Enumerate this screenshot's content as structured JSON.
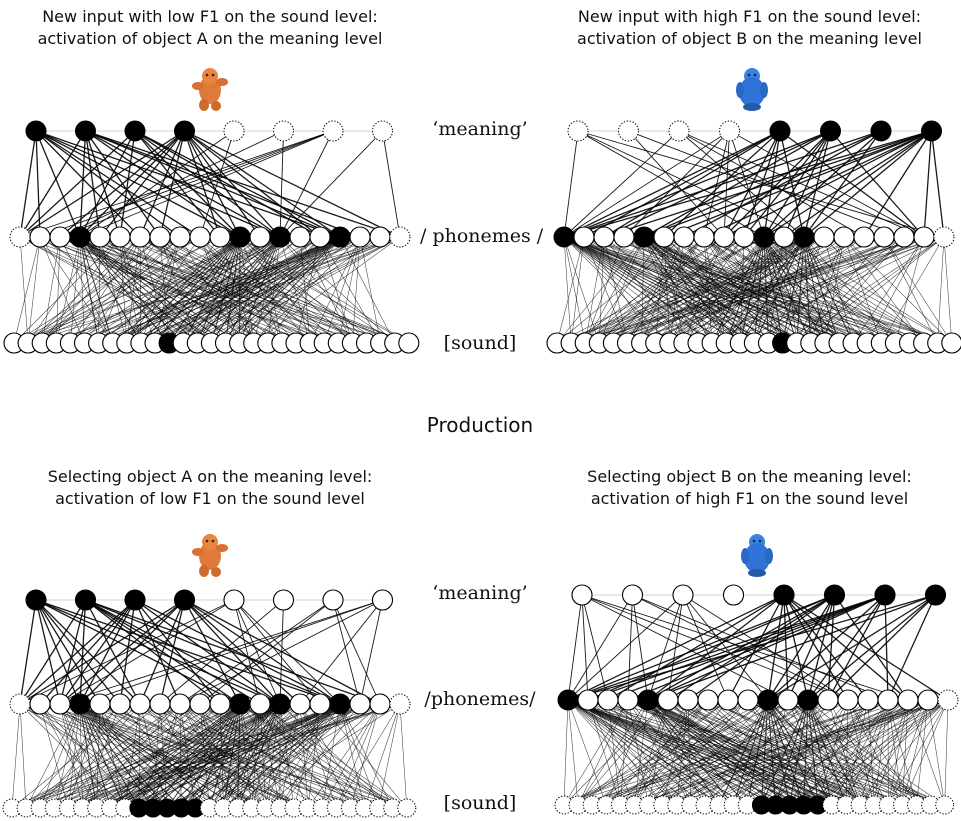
{
  "perception": {
    "left": {
      "caption_line1": "New input with low F1 on the sound level:",
      "caption_line2": "activation of object A on the meaning level",
      "object_icon": "orange-figurine-icon",
      "object_color": "#e07a3c"
    },
    "right": {
      "caption_line1": "New input with high F1 on the sound level:",
      "caption_line2": "activation of  object B on the meaning level",
      "object_icon": "blue-figurine-icon",
      "object_color": "#2f73d6"
    },
    "labels": {
      "meaning": "‘meaning’",
      "phonemes": "/ phonemes /",
      "sound": "[sound]"
    }
  },
  "section_heading": "Production",
  "production": {
    "left": {
      "caption_line1": "Selecting object A on the meaning level:",
      "caption_line2": "activation of low F1 on the  sound level",
      "object_icon": "orange-figurine-icon",
      "object_color": "#e07a3c"
    },
    "right": {
      "caption_line1": "Selecting object B on the meaning level:",
      "caption_line2": "activation of high F1 on the sound level",
      "object_icon": "blue-figurine-icon",
      "object_color": "#2f73d6"
    },
    "labels": {
      "meaning": "‘meaning’",
      "phonemes": "/phonemes/",
      "sound": "[sound]"
    }
  },
  "colors": {
    "node_active": "#000000",
    "node_inactive": "#ffffff",
    "edge": "#000000"
  }
}
